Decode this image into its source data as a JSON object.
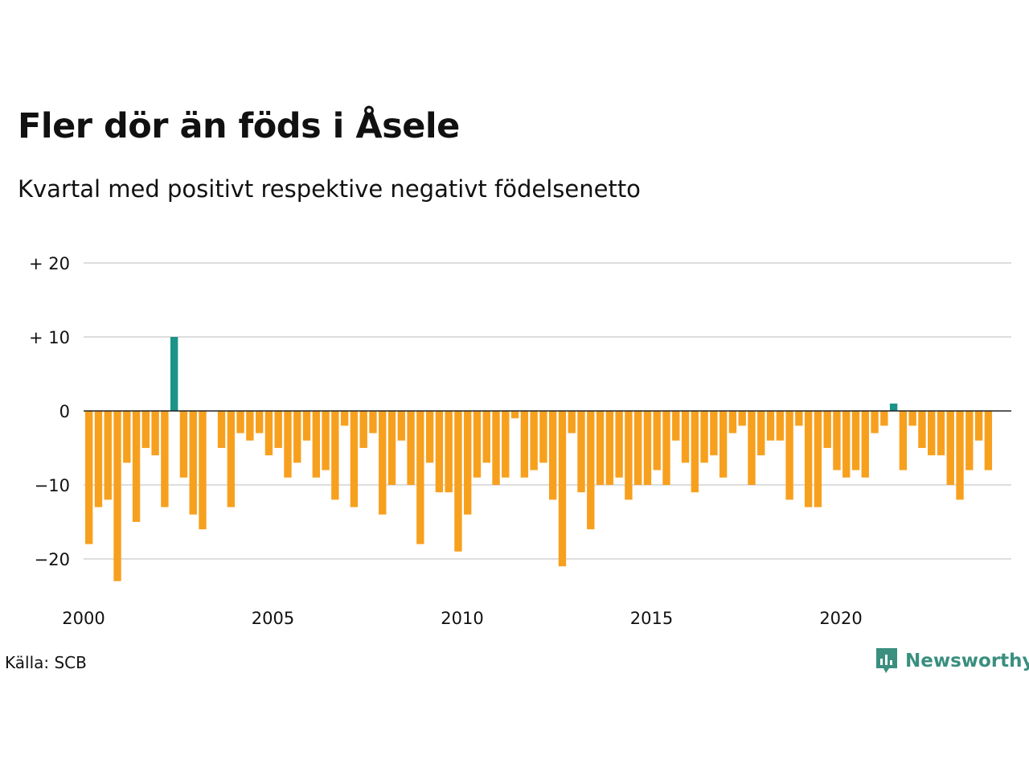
{
  "title": "Fler dör än föds i Åsele",
  "subtitle": "Kvartal med positivt respektive negativt födelsenetto",
  "source": "Källa: SCB",
  "brand": {
    "name": "Newsworthy",
    "icon": "newsworthy-logo-icon",
    "color": "#3a8f7f"
  },
  "chart_data": {
    "type": "bar",
    "title": "Fler dör än föds i Åsele",
    "subtitle": "Kvartal med positivt respektive negativt födelsenetto",
    "xlabel": "",
    "ylabel": "",
    "ylim": [
      -25,
      20
    ],
    "xlim": [
      2000,
      2024.5
    ],
    "grid": true,
    "colors": {
      "positive": "#1a9388",
      "negative": "#f7a01e",
      "grid": "#dddddd",
      "zero": "#222222"
    },
    "y_ticks": [
      {
        "value": 20,
        "label": "+ 20"
      },
      {
        "value": 10,
        "label": "+ 10"
      },
      {
        "value": 0,
        "label": "0"
      },
      {
        "value": -10,
        "label": "−10"
      },
      {
        "value": -20,
        "label": "−20"
      }
    ],
    "x_ticks": [
      {
        "value": 2000,
        "label": "2000"
      },
      {
        "value": 2005,
        "label": "2005"
      },
      {
        "value": 2010,
        "label": "2010"
      },
      {
        "value": 2015,
        "label": "2015"
      },
      {
        "value": 2020,
        "label": "2020"
      }
    ],
    "start_year": 2000,
    "start_quarter": 1,
    "values": [
      -18,
      -13,
      -12,
      -23,
      -7,
      -15,
      -5,
      -6,
      -13,
      10,
      -9,
      -14,
      -16,
      0,
      -5,
      -13,
      -3,
      -4,
      -3,
      -6,
      -5,
      -9,
      -7,
      -4,
      -9,
      -8,
      -12,
      -2,
      -13,
      -5,
      -3,
      -14,
      -10,
      -4,
      -10,
      -18,
      -7,
      -11,
      -11,
      -19,
      -14,
      -9,
      -7,
      -10,
      -9,
      -1,
      -9,
      -8,
      -7,
      -12,
      -21,
      -3,
      -11,
      -16,
      -10,
      -10,
      -9,
      -12,
      -10,
      -10,
      -8,
      -10,
      -4,
      -7,
      -11,
      -7,
      -6,
      -9,
      -3,
      -2,
      -10,
      -6,
      -4,
      -4,
      -12,
      -2,
      -13,
      -13,
      -5,
      -8,
      -9,
      -8,
      -9,
      -3,
      -2,
      1,
      -8,
      -2,
      -5,
      -6,
      -6,
      -10,
      -12,
      -8,
      -4,
      -8
    ]
  }
}
